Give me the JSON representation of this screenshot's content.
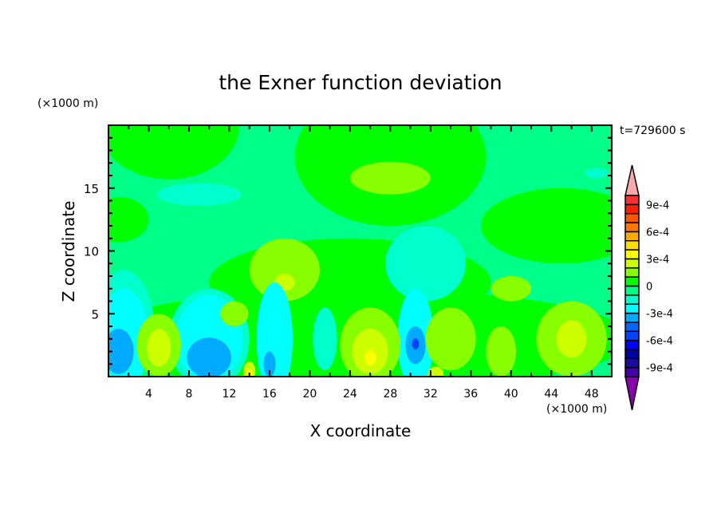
{
  "chart_data": {
    "type": "heatmap",
    "title": "the Exner function deviation",
    "xlabel": "X coordinate",
    "ylabel": "Z coordinate",
    "x_unit": "(×1000 m)",
    "y_unit": "(×1000 m)",
    "time_label": "t=729600 s",
    "xlim": [
      0,
      50
    ],
    "ylim": [
      0,
      20
    ],
    "x_ticks": [
      4,
      8,
      12,
      16,
      20,
      24,
      28,
      32,
      36,
      40,
      44,
      48
    ],
    "y_ticks": [
      5,
      10,
      15
    ],
    "grid": false,
    "colorbar": {
      "placement": "right",
      "levels_min": -0.001,
      "levels_max": 0.001,
      "step": 0.0001,
      "tick_labels": [
        {
          "value": 0.0009,
          "label": "9e-4"
        },
        {
          "value": 0.0006,
          "label": "6e-4"
        },
        {
          "value": 0.0003,
          "label": "3e-4"
        },
        {
          "value": 0,
          "label": "0"
        },
        {
          "value": -0.0003,
          "label": "-3e-4"
        },
        {
          "value": -0.0006,
          "label": "-6e-4"
        },
        {
          "value": -0.0009,
          "label": "-9e-4"
        }
      ],
      "colors_low_to_high": [
        "#4400aa",
        "#1a0aa0",
        "#0000aa",
        "#0000ff",
        "#0044ff",
        "#0066ff",
        "#00aaff",
        "#00ffff",
        "#00ffcc",
        "#00ff88",
        "#00ff00",
        "#88ff00",
        "#ccff00",
        "#ffff00",
        "#ffdd00",
        "#ffaa00",
        "#ff7700",
        "#ff5500",
        "#ff2000",
        "#ff3030"
      ],
      "under_color": "#8800aa",
      "over_color": "#ffaaaa"
    },
    "background_value": -5e-05,
    "features": [
      {
        "x": 6,
        "z": 20,
        "rx": 7,
        "rz": 4.3,
        "value": 5e-05
      },
      {
        "x": 28,
        "z": 17.5,
        "rx": 9.5,
        "rz": 5.5,
        "value": 5e-05
      },
      {
        "x": 45,
        "z": 12,
        "rx": 8,
        "rz": 3,
        "value": 5e-05
      },
      {
        "x": 1,
        "z": 12.5,
        "rx": 3,
        "rz": 1.8,
        "value": 5e-05
      },
      {
        "x": 28,
        "z": 15.8,
        "rx": 4,
        "rz": 1.3,
        "value": 0.00015
      },
      {
        "x": 9,
        "z": 14.5,
        "rx": 4.2,
        "rz": 0.9,
        "value": -0.00015
      },
      {
        "x": 48.5,
        "z": 16.2,
        "rx": 1.2,
        "rz": 0.4,
        "value": -0.00015
      },
      {
        "x": 24,
        "z": 7.5,
        "rx": 14,
        "rz": 3.5,
        "value": 5e-05
      },
      {
        "x": 25,
        "z": 3,
        "rx": 27,
        "rz": 4,
        "value": 5e-05
      },
      {
        "x": 31.5,
        "z": 9,
        "rx": 4,
        "rz": 3,
        "value": -0.00015
      },
      {
        "x": 17.5,
        "z": 8.5,
        "rx": 3.5,
        "rz": 2.5,
        "value": 0.00015
      },
      {
        "x": 17.5,
        "z": 7.5,
        "rx": 1,
        "rz": 0.7,
        "value": 0.00025
      },
      {
        "x": 1.5,
        "z": 4,
        "rx": 3,
        "rz": 4.5,
        "value": -0.00015
      },
      {
        "x": 10,
        "z": 3,
        "rx": 4,
        "rz": 4,
        "value": -0.00015
      },
      {
        "x": 1.5,
        "z": 3,
        "rx": 2.5,
        "rz": 4,
        "value": -0.00025
      },
      {
        "x": 10,
        "z": 3,
        "rx": 3.3,
        "rz": 3.5,
        "value": -0.00025
      },
      {
        "x": 16.5,
        "z": 3,
        "rx": 1.8,
        "rz": 4.5,
        "value": -0.00025
      },
      {
        "x": 30.5,
        "z": 3,
        "rx": 1.8,
        "rz": 4,
        "value": -0.00025
      },
      {
        "x": 21.5,
        "z": 3,
        "rx": 1.2,
        "rz": 2.5,
        "value": -0.00015
      },
      {
        "x": 1,
        "z": 2,
        "rx": 1.5,
        "rz": 1.8,
        "value": -0.00035
      },
      {
        "x": 10,
        "z": 1.5,
        "rx": 2.2,
        "rz": 1.6,
        "value": -0.00035
      },
      {
        "x": 16,
        "z": 1,
        "rx": 0.6,
        "rz": 1,
        "value": -0.00035
      },
      {
        "x": 30.5,
        "z": 2.5,
        "rx": 1,
        "rz": 1.5,
        "value": -0.00035
      },
      {
        "x": 30.5,
        "z": 2.6,
        "rx": 0.35,
        "rz": 0.45,
        "value": -0.00055
      },
      {
        "x": 5,
        "z": 2.5,
        "rx": 2.2,
        "rz": 2.5,
        "value": 0.00015
      },
      {
        "x": 26,
        "z": 2.5,
        "rx": 3,
        "rz": 3,
        "value": 0.00015
      },
      {
        "x": 34,
        "z": 3,
        "rx": 2.5,
        "rz": 2.5,
        "value": 0.00015
      },
      {
        "x": 39,
        "z": 2,
        "rx": 1.5,
        "rz": 2,
        "value": 0.00015
      },
      {
        "x": 46,
        "z": 3,
        "rx": 3.5,
        "rz": 3,
        "value": 0.00015
      },
      {
        "x": 40,
        "z": 7,
        "rx": 2,
        "rz": 1,
        "value": 0.00015
      },
      {
        "x": 12.5,
        "z": 5,
        "rx": 1.4,
        "rz": 1,
        "value": 0.00015
      },
      {
        "x": 5,
        "z": 2.3,
        "rx": 1.2,
        "rz": 1.5,
        "value": 0.00025
      },
      {
        "x": 26,
        "z": 2,
        "rx": 1.8,
        "rz": 1.8,
        "value": 0.00025
      },
      {
        "x": 46,
        "z": 3,
        "rx": 1.5,
        "rz": 1.5,
        "value": 0.00025
      },
      {
        "x": 14,
        "z": 0.4,
        "rx": 0.6,
        "rz": 0.8,
        "value": 0.00025
      },
      {
        "x": 32.5,
        "z": 0.2,
        "rx": 0.8,
        "rz": 0.6,
        "value": 0.00025
      },
      {
        "x": 26,
        "z": 1.5,
        "rx": 0.6,
        "rz": 0.6,
        "value": 0.00035
      },
      {
        "x": 14,
        "z": 0.2,
        "rx": 0.3,
        "rz": 0.4,
        "value": 0.00035
      }
    ]
  }
}
